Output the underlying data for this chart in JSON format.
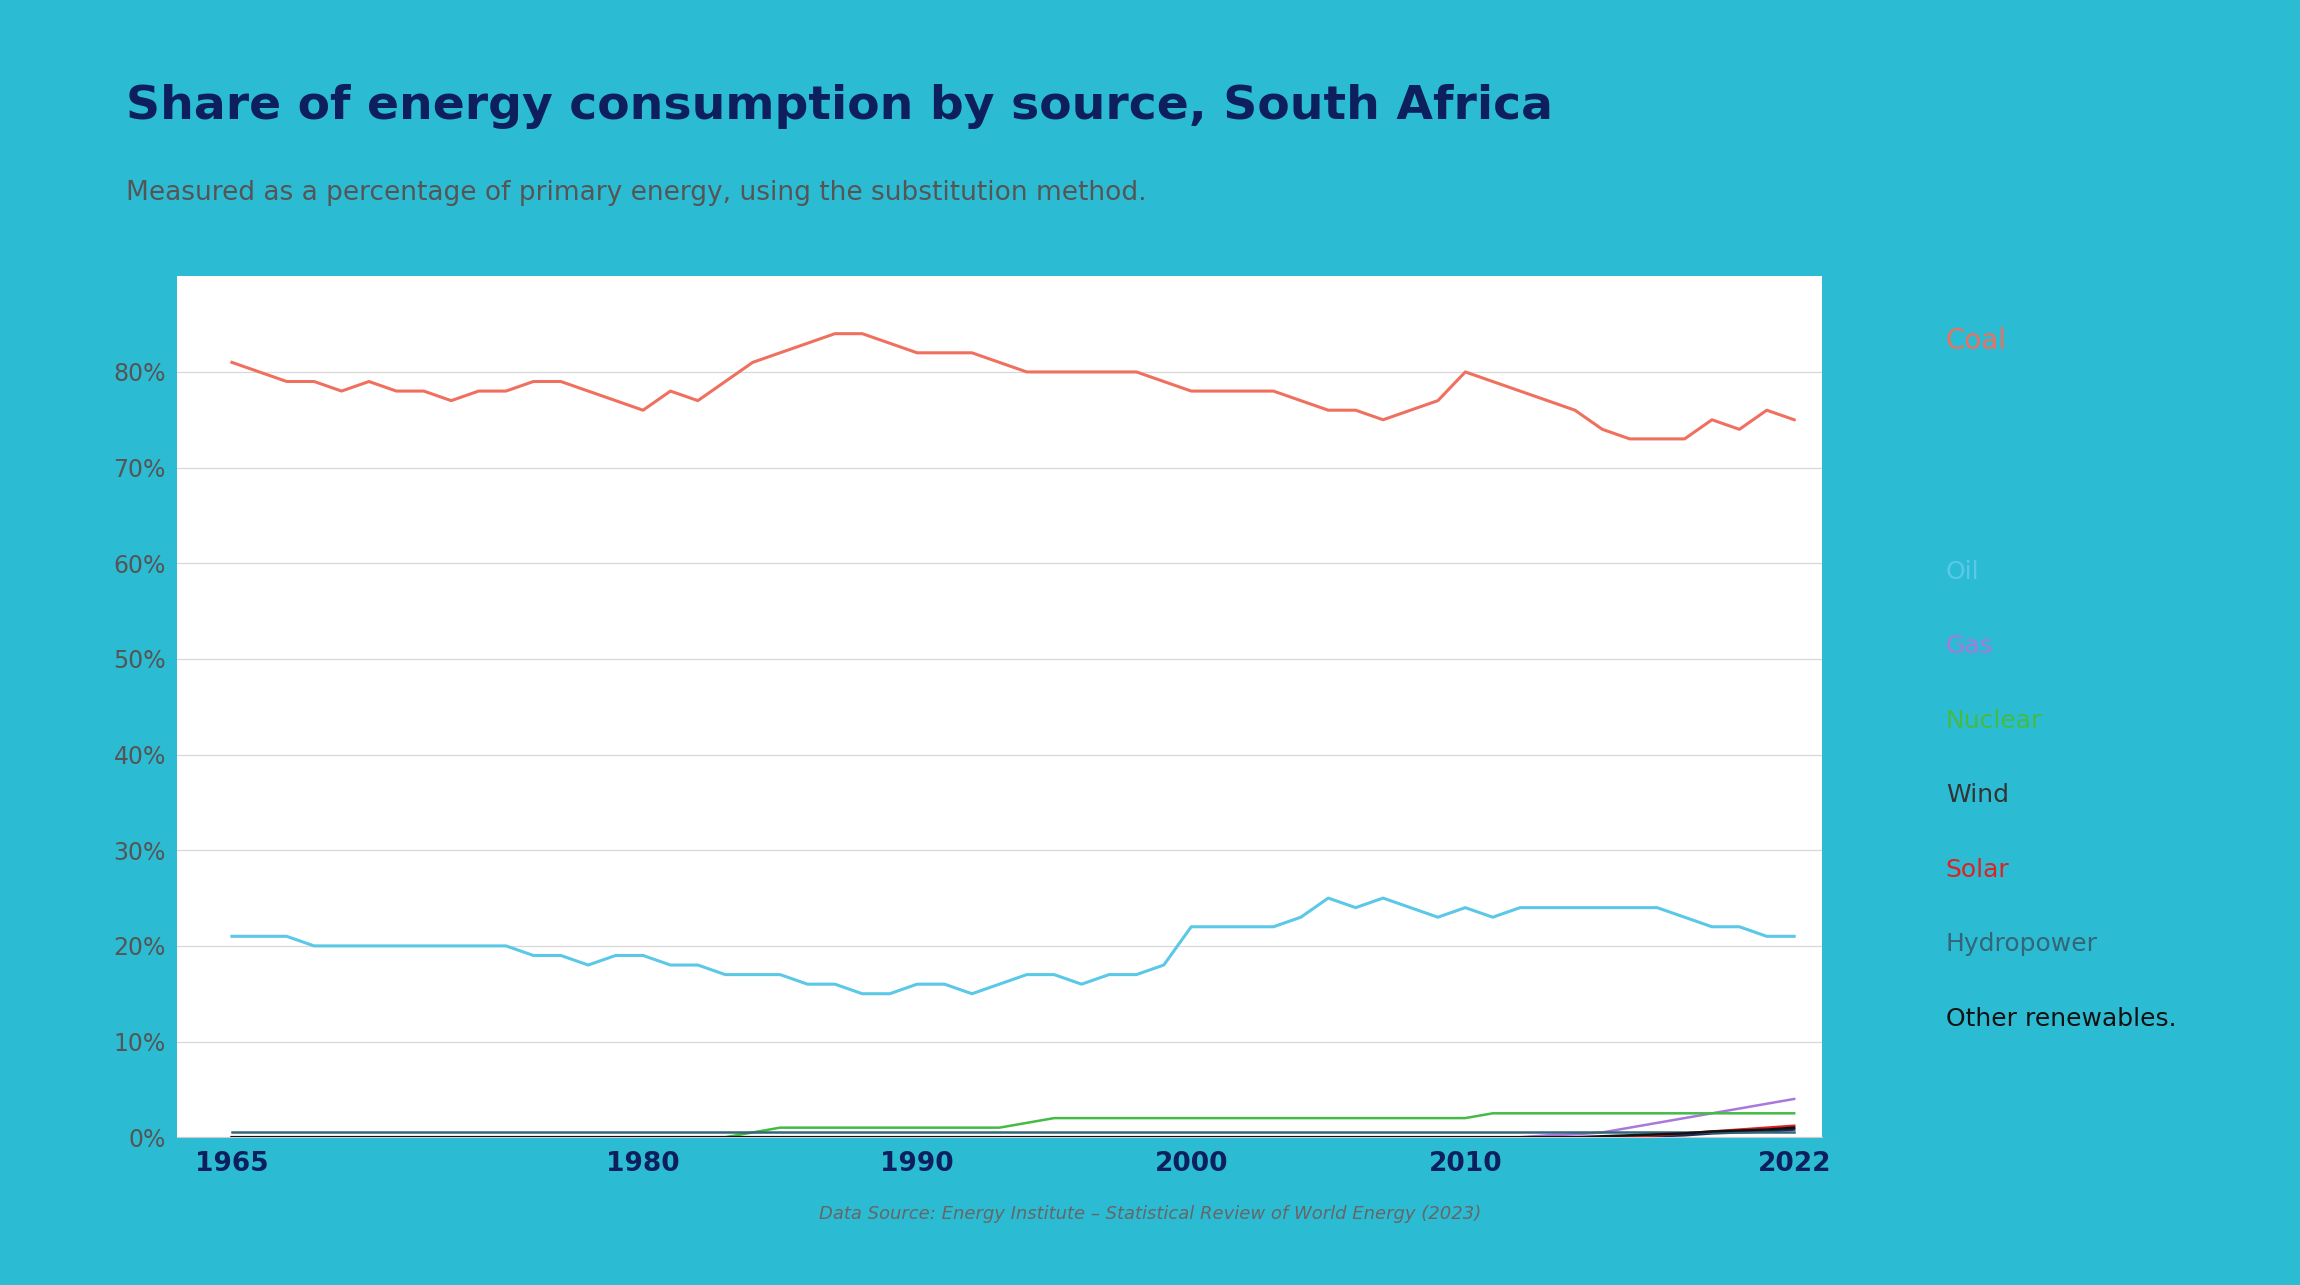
{
  "title": "Share of energy consumption by source, South Africa",
  "subtitle": "Measured as a percentage of primary energy, using the substitution method.",
  "source": "Data Source: Energy Institute – Statistical Review of World Energy (2023)",
  "background_color": "#ffffff",
  "border_color": "#2BBCD4",
  "title_color": "#0d1f5c",
  "years": [
    1965,
    1966,
    1967,
    1968,
    1969,
    1970,
    1971,
    1972,
    1973,
    1974,
    1975,
    1976,
    1977,
    1978,
    1979,
    1980,
    1981,
    1982,
    1983,
    1984,
    1985,
    1986,
    1987,
    1988,
    1989,
    1990,
    1991,
    1992,
    1993,
    1994,
    1995,
    1996,
    1997,
    1998,
    1999,
    2000,
    2001,
    2002,
    2003,
    2004,
    2005,
    2006,
    2007,
    2008,
    2009,
    2010,
    2011,
    2012,
    2013,
    2014,
    2015,
    2016,
    2017,
    2018,
    2019,
    2020,
    2021,
    2022
  ],
  "coal": [
    81,
    80,
    79,
    79,
    78,
    79,
    78,
    78,
    77,
    78,
    78,
    79,
    79,
    78,
    77,
    76,
    78,
    77,
    79,
    81,
    82,
    83,
    84,
    84,
    83,
    82,
    82,
    82,
    81,
    80,
    80,
    80,
    80,
    80,
    79,
    78,
    78,
    78,
    78,
    77,
    76,
    76,
    75,
    76,
    77,
    80,
    79,
    78,
    77,
    76,
    74,
    73,
    73,
    73,
    75,
    74,
    76,
    75
  ],
  "oil": [
    21,
    21,
    21,
    20,
    20,
    20,
    20,
    20,
    20,
    20,
    20,
    19,
    19,
    18,
    19,
    19,
    18,
    18,
    17,
    17,
    17,
    16,
    16,
    15,
    15,
    16,
    16,
    15,
    16,
    17,
    17,
    16,
    17,
    17,
    18,
    22,
    22,
    22,
    22,
    23,
    25,
    24,
    25,
    24,
    23,
    24,
    23,
    24,
    24,
    24,
    24,
    24,
    24,
    23,
    22,
    22,
    21,
    21
  ],
  "gas": [
    0,
    0,
    0,
    0,
    0,
    0,
    0,
    0,
    0,
    0,
    0,
    0,
    0,
    0,
    0,
    0,
    0,
    0,
    0,
    0,
    0,
    0,
    0,
    0,
    0,
    0,
    0,
    0,
    0,
    0,
    0,
    0,
    0,
    0,
    0,
    0,
    0,
    0,
    0,
    0,
    0,
    0,
    0,
    0,
    0,
    0,
    0,
    0,
    0.2,
    0.3,
    0.5,
    1.0,
    1.5,
    2.0,
    2.5,
    3.0,
    3.5,
    4.0
  ],
  "nuclear": [
    0,
    0,
    0,
    0,
    0,
    0,
    0,
    0,
    0,
    0,
    0,
    0,
    0,
    0,
    0,
    0,
    0,
    0,
    0,
    0.5,
    1.0,
    1.0,
    1.0,
    1.0,
    1.0,
    1.0,
    1.0,
    1.0,
    1.0,
    1.5,
    2.0,
    2.0,
    2.0,
    2.0,
    2.0,
    2.0,
    2.0,
    2.0,
    2.0,
    2.0,
    2.0,
    2.0,
    2.0,
    2.0,
    2.0,
    2.0,
    2.5,
    2.5,
    2.5,
    2.5,
    2.5,
    2.5,
    2.5,
    2.5,
    2.5,
    2.5,
    2.5,
    2.5
  ],
  "wind": [
    0,
    0,
    0,
    0,
    0,
    0,
    0,
    0,
    0,
    0,
    0,
    0,
    0,
    0,
    0,
    0,
    0,
    0,
    0,
    0,
    0,
    0,
    0,
    0,
    0,
    0,
    0,
    0,
    0,
    0,
    0,
    0,
    0,
    0,
    0,
    0,
    0,
    0,
    0,
    0,
    0,
    0,
    0,
    0,
    0,
    0,
    0,
    0,
    0,
    0,
    0,
    0,
    0.1,
    0.2,
    0.4,
    0.5,
    0.6,
    0.8
  ],
  "solar": [
    0,
    0,
    0,
    0,
    0,
    0,
    0,
    0,
    0,
    0,
    0,
    0,
    0,
    0,
    0,
    0,
    0,
    0,
    0,
    0,
    0,
    0,
    0,
    0,
    0,
    0,
    0,
    0,
    0,
    0,
    0,
    0,
    0,
    0,
    0,
    0,
    0,
    0,
    0,
    0,
    0,
    0,
    0,
    0,
    0,
    0,
    0,
    0,
    0,
    0,
    0,
    0.1,
    0.2,
    0.4,
    0.6,
    0.8,
    1.0,
    1.2
  ],
  "hydropower": [
    0.5,
    0.5,
    0.5,
    0.5,
    0.5,
    0.5,
    0.5,
    0.5,
    0.5,
    0.5,
    0.5,
    0.5,
    0.5,
    0.5,
    0.5,
    0.5,
    0.5,
    0.5,
    0.5,
    0.5,
    0.5,
    0.5,
    0.5,
    0.5,
    0.5,
    0.5,
    0.5,
    0.5,
    0.5,
    0.5,
    0.5,
    0.5,
    0.5,
    0.5,
    0.5,
    0.5,
    0.5,
    0.5,
    0.5,
    0.5,
    0.5,
    0.5,
    0.5,
    0.5,
    0.5,
    0.5,
    0.5,
    0.5,
    0.5,
    0.5,
    0.5,
    0.5,
    0.5,
    0.5,
    0.5,
    0.5,
    0.5,
    0.5
  ],
  "other_renewables": [
    0,
    0,
    0,
    0,
    0,
    0,
    0,
    0,
    0,
    0,
    0,
    0,
    0,
    0,
    0,
    0,
    0,
    0,
    0,
    0,
    0,
    0,
    0,
    0,
    0,
    0,
    0,
    0,
    0,
    0,
    0,
    0,
    0,
    0,
    0,
    0,
    0,
    0,
    0,
    0,
    0,
    0,
    0,
    0,
    0,
    0,
    0,
    0,
    0,
    0,
    0.1,
    0.2,
    0.3,
    0.4,
    0.6,
    0.7,
    0.8,
    1.0
  ],
  "coal_color": "#F07060",
  "oil_color": "#5BC8E8",
  "gas_color": "#AA77DD",
  "nuclear_color": "#44BB44",
  "wind_color": "#1a2a5e",
  "solar_color": "#DD2222",
  "hydropower_color": "#336677",
  "other_color": "#111111",
  "coal_label_color": "#F07060",
  "oil_label_color": "#5BC8E8",
  "gas_label_color": "#AA77DD",
  "nuclear_label_color": "#44BB44",
  "wind_label_color": "#333333",
  "solar_label_color": "#DD2222",
  "hydropower_label_color": "#336677",
  "other_label_color": "#111111",
  "ylim": [
    0,
    90
  ],
  "yticks": [
    0,
    10,
    20,
    30,
    40,
    50,
    60,
    70,
    80
  ],
  "ytick_labels": [
    "0%",
    "10%",
    "20%",
    "30%",
    "40%",
    "50%",
    "60%",
    "70%",
    "80%"
  ],
  "xticks": [
    1965,
    1970,
    1975,
    1980,
    1985,
    1990,
    1995,
    2000,
    2005,
    2010,
    2015,
    2022
  ],
  "xtick_labels": [
    "1965",
    "",
    "",
    "1980",
    "",
    "1990",
    "",
    "2000",
    "",
    "2010",
    "",
    "2022"
  ]
}
